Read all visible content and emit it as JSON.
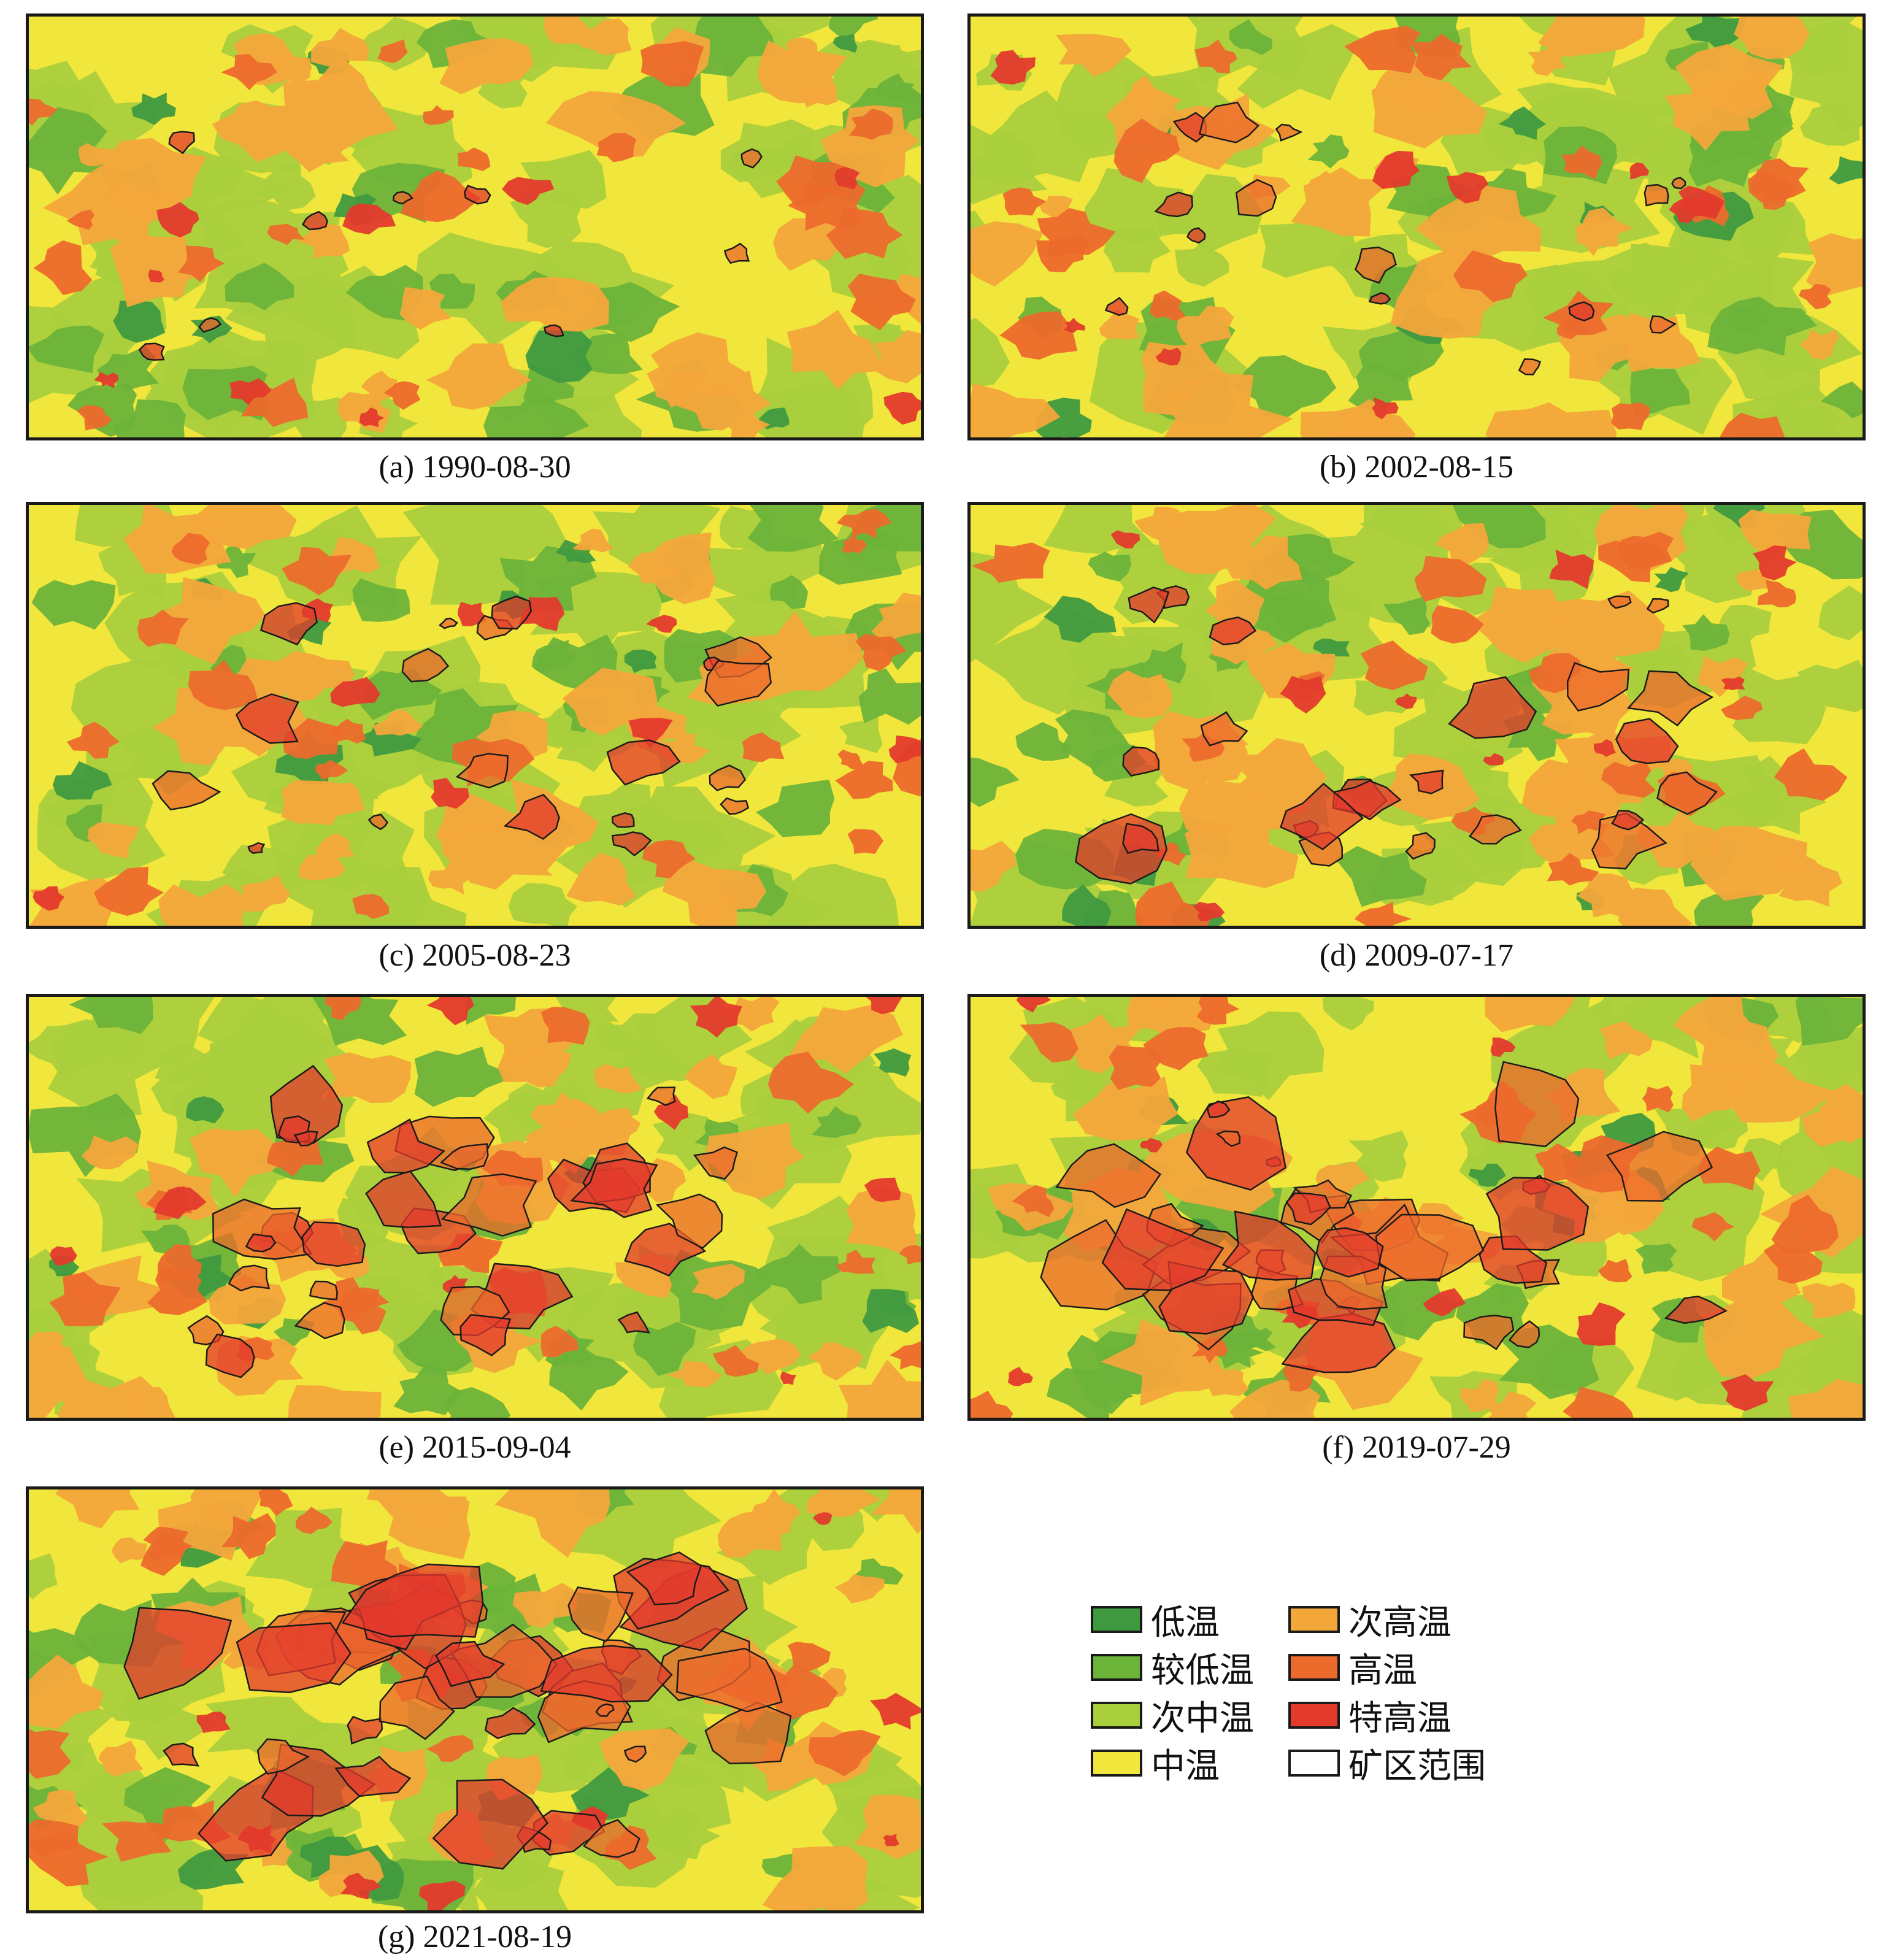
{
  "panels": [
    {
      "id": "a",
      "caption": "(a) 1990-08-30",
      "footprint": 1
    },
    {
      "id": "b",
      "caption": "(b) 2002-08-15",
      "footprint": 2
    },
    {
      "id": "c",
      "caption": "(c) 2005-08-23",
      "footprint": 3
    },
    {
      "id": "d",
      "caption": "(d) 2009-07-17",
      "footprint": 4
    },
    {
      "id": "e",
      "caption": "(e) 2015-09-04",
      "footprint": 5
    },
    {
      "id": "f",
      "caption": "(f) 2019-07-29",
      "footprint": 6
    },
    {
      "id": "g",
      "caption": "(g) 2021-08-19",
      "footprint": 7
    }
  ],
  "legend": {
    "items": [
      {
        "label": "低温",
        "color": "#3f9a3f"
      },
      {
        "label": "较低温",
        "color": "#6cb33a"
      },
      {
        "label": "次中温",
        "color": "#a9cf3c"
      },
      {
        "label": "中温",
        "color": "#f0e63c"
      },
      {
        "label": "次高温",
        "color": "#f3a63a"
      },
      {
        "label": "高温",
        "color": "#ec6a2c"
      },
      {
        "label": "特高温",
        "color": "#e33a2c"
      },
      {
        "label": "矿区范围",
        "color": "#ffffff"
      }
    ]
  },
  "colors": {
    "low": "#3f9a3f",
    "lower": "#6cb33a",
    "sub_medium": "#a9cf3c",
    "medium": "#f0e63c",
    "sub_high": "#f3a63a",
    "high": "#ec6a2c",
    "very_high": "#e33a2c",
    "mine_outline": "#1a1a1a"
  }
}
